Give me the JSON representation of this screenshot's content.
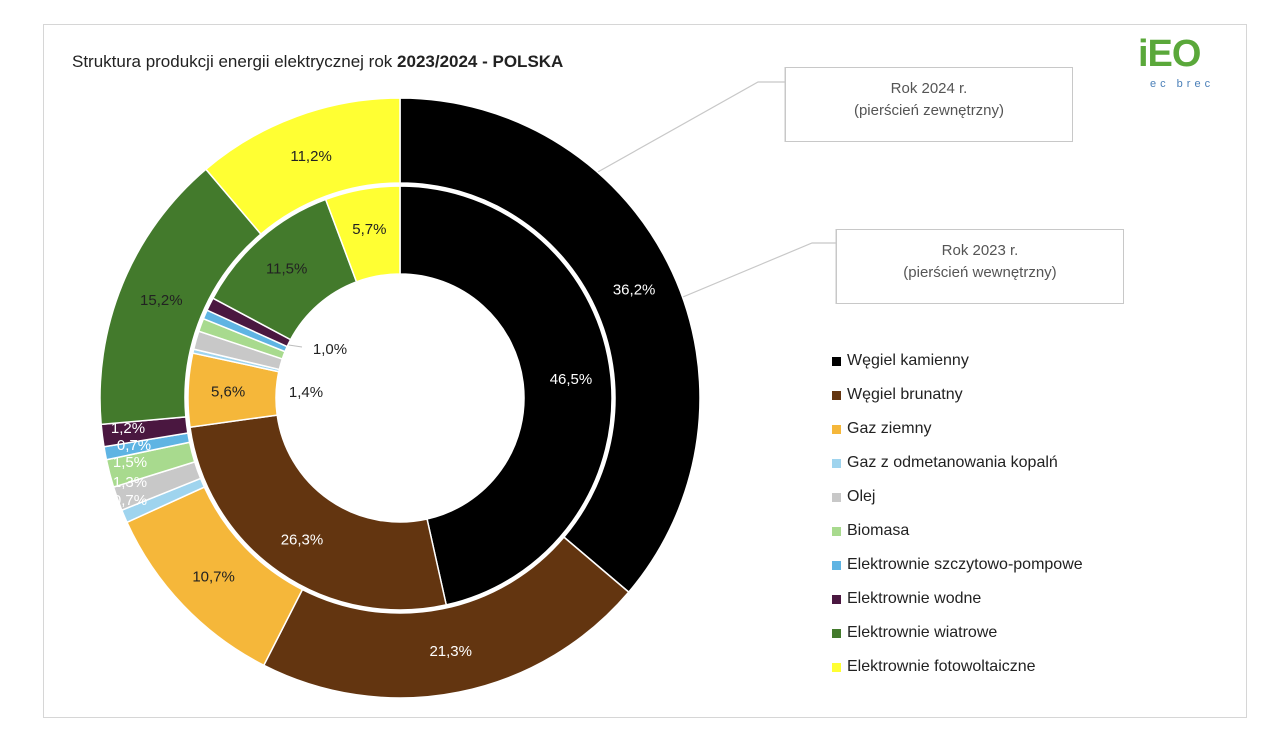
{
  "chart_data": {
    "type": "pie",
    "subtype": "double-donut",
    "title_prefix": "Struktura produkcji energii elektrycznej rok ",
    "title_bold": "2023/2024 - POLSKA",
    "categories": [
      "Węgiel kamienny",
      "Węgiel brunatny",
      "Gaz ziemny",
      "Gaz z odmetanowania kopalń",
      "Olej",
      "Biomasa",
      "Elektrownie szczytowo-pompowe",
      "Elektrownie wodne",
      "Elektrownie wiatrowe",
      "Elektrownie fotowoltaiczne"
    ],
    "colors": [
      "#000000",
      "#633510",
      "#F5B73A",
      "#9FD4EE",
      "#C8C8C8",
      "#A8DA8E",
      "#5FB4E3",
      "#4A1740",
      "#437A2C",
      "#FFFF33"
    ],
    "series": [
      {
        "ring": "outer",
        "values": [
          36.2,
          21.3,
          10.7,
          0.7,
          1.3,
          1.5,
          0.7,
          1.2,
          15.2,
          11.2
        ],
        "labels": [
          "36,2%",
          "21,3%",
          "10,7%",
          "0,7%",
          "1,3%",
          "1,5%",
          "0,7%",
          "1,2%",
          "15,2%",
          "11,2%"
        ]
      },
      {
        "ring": "inner",
        "values": [
          46.5,
          26.3,
          5.6,
          0.3,
          1.4,
          1.0,
          0.7,
          1.0,
          11.5,
          5.7
        ],
        "labels": [
          "46,5%",
          "26,3%",
          "5,6%",
          "",
          "1,4%",
          "1,0%",
          "",
          "",
          "11,5%",
          "5,7%"
        ]
      }
    ],
    "legend_position": "right"
  },
  "callouts": {
    "outer_line1": "Rok 2024 r.",
    "outer_line2": "(pierścień zewnętrzny)",
    "inner_line1": "Rok 2023 r.",
    "inner_line2": "(pierścień wewnętrzny)"
  },
  "logo": {
    "brand": "iEO",
    "sub": "ec brec"
  }
}
